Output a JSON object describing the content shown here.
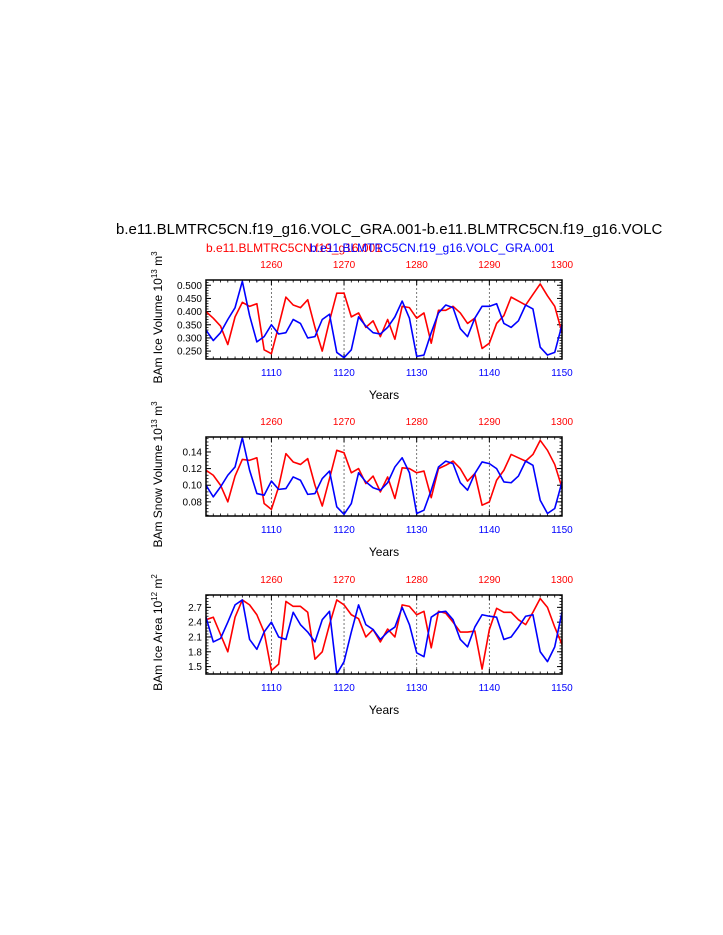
{
  "figure": {
    "title": "b.e11.BLMTRC5CN.f19_g16.VOLC_GRA.001-b.e11.BLMTRC5CN.f19_g16.VOLC",
    "legend_red": "b.e11.BLMTRC5CN.f19_g16.001",
    "legend_blue": "b.e11.BLMTRC5CN.f19_g16.VOLC_GRA.001",
    "colors": {
      "red": "#ff0000",
      "blue": "#0000ff",
      "axis": "#000000"
    }
  },
  "chart_data": [
    {
      "type": "line",
      "ylabel": "BAm Ice Volume 10",
      "ylabel_sup1": "13",
      "ylabel_mid": " m",
      "ylabel_sup2": "3",
      "xlabel": "Years",
      "ylim": [
        0.22,
        0.52
      ],
      "yticks": [
        "0.250",
        "0.300",
        "0.350",
        "0.400",
        "0.450",
        "0.500"
      ],
      "top_x": {
        "range": [
          1251,
          1300
        ],
        "ticks": [
          "1260",
          "1270",
          "1280",
          "1290",
          "1300"
        ]
      },
      "bottom_x": {
        "range": [
          1101,
          1150
        ],
        "ticks": [
          "1110",
          "1120",
          "1130",
          "1140",
          "1150"
        ]
      },
      "series": [
        {
          "color": "red",
          "axis": "top",
          "values": [
            0.4,
            0.375,
            0.345,
            0.275,
            0.38,
            0.435,
            0.42,
            0.43,
            0.255,
            0.24,
            0.345,
            0.455,
            0.425,
            0.415,
            0.445,
            0.34,
            0.25,
            0.365,
            0.47,
            0.47,
            0.38,
            0.395,
            0.34,
            0.365,
            0.305,
            0.37,
            0.295,
            0.42,
            0.415,
            0.375,
            0.395,
            0.28,
            0.405,
            0.405,
            0.42,
            0.395,
            0.355,
            0.375,
            0.26,
            0.28,
            0.355,
            0.385,
            0.455,
            0.44,
            0.425,
            0.465,
            0.505,
            0.46,
            0.42,
            0.32
          ]
        },
        {
          "color": "blue",
          "axis": "bottom",
          "values": [
            0.33,
            0.29,
            0.32,
            0.37,
            0.415,
            0.515,
            0.385,
            0.285,
            0.305,
            0.35,
            0.315,
            0.32,
            0.37,
            0.355,
            0.3,
            0.305,
            0.37,
            0.39,
            0.245,
            0.225,
            0.255,
            0.38,
            0.345,
            0.32,
            0.315,
            0.34,
            0.38,
            0.44,
            0.375,
            0.23,
            0.235,
            0.32,
            0.395,
            0.425,
            0.415,
            0.335,
            0.305,
            0.375,
            0.42,
            0.42,
            0.43,
            0.355,
            0.34,
            0.365,
            0.425,
            0.41,
            0.265,
            0.235,
            0.245,
            0.35
          ]
        }
      ]
    },
    {
      "type": "line",
      "ylabel": "BAm Snow Volume 10",
      "ylabel_sup1": "13",
      "ylabel_mid": " m",
      "ylabel_sup2": "3",
      "xlabel": "Years",
      "ylim": [
        0.063,
        0.158
      ],
      "yticks": [
        "0.08",
        "0.10",
        "0.12",
        "0.14"
      ],
      "top_x": {
        "range": [
          1251,
          1300
        ],
        "ticks": [
          "1260",
          "1270",
          "1280",
          "1290",
          "1300"
        ]
      },
      "bottom_x": {
        "range": [
          1101,
          1150
        ],
        "ticks": [
          "1110",
          "1120",
          "1130",
          "1140",
          "1150"
        ]
      },
      "series": [
        {
          "color": "red",
          "axis": "top",
          "values": [
            0.118,
            0.112,
            0.1,
            0.08,
            0.111,
            0.131,
            0.13,
            0.133,
            0.078,
            0.071,
            0.098,
            0.138,
            0.128,
            0.125,
            0.132,
            0.1,
            0.075,
            0.108,
            0.142,
            0.139,
            0.115,
            0.12,
            0.102,
            0.111,
            0.092,
            0.11,
            0.084,
            0.121,
            0.12,
            0.115,
            0.117,
            0.085,
            0.12,
            0.124,
            0.129,
            0.12,
            0.105,
            0.114,
            0.076,
            0.08,
            0.106,
            0.118,
            0.137,
            0.133,
            0.129,
            0.137,
            0.154,
            0.142,
            0.125,
            0.097
          ]
        },
        {
          "color": "blue",
          "axis": "bottom",
          "values": [
            0.1,
            0.086,
            0.098,
            0.112,
            0.122,
            0.157,
            0.118,
            0.09,
            0.088,
            0.105,
            0.095,
            0.096,
            0.11,
            0.106,
            0.089,
            0.09,
            0.108,
            0.117,
            0.074,
            0.065,
            0.078,
            0.115,
            0.104,
            0.097,
            0.094,
            0.103,
            0.122,
            0.133,
            0.115,
            0.066,
            0.07,
            0.094,
            0.122,
            0.129,
            0.126,
            0.103,
            0.094,
            0.114,
            0.128,
            0.126,
            0.12,
            0.104,
            0.103,
            0.111,
            0.129,
            0.124,
            0.082,
            0.066,
            0.072,
            0.104
          ]
        }
      ]
    },
    {
      "type": "line",
      "ylabel": "BAm Ice Area 10",
      "ylabel_sup1": "12",
      "ylabel_mid": " m",
      "ylabel_sup2": "2",
      "xlabel": "Years",
      "ylim": [
        1.35,
        2.95
      ],
      "yticks": [
        "1.5",
        "1.8",
        "2.1",
        "2.4",
        "2.7"
      ],
      "top_x": {
        "range": [
          1251,
          1300
        ],
        "ticks": [
          "1260",
          "1270",
          "1280",
          "1290",
          "1300"
        ]
      },
      "bottom_x": {
        "range": [
          1101,
          1150
        ],
        "ticks": [
          "1110",
          "1120",
          "1130",
          "1140",
          "1150"
        ]
      },
      "series": [
        {
          "color": "red",
          "axis": "top",
          "values": [
            2.45,
            2.5,
            2.15,
            1.8,
            2.5,
            2.85,
            2.75,
            2.55,
            2.2,
            1.42,
            1.55,
            2.82,
            2.72,
            2.72,
            2.6,
            1.65,
            1.8,
            2.35,
            2.85,
            2.75,
            2.55,
            2.47,
            2.1,
            2.25,
            2.0,
            2.26,
            2.1,
            2.75,
            2.72,
            2.55,
            2.62,
            1.88,
            2.62,
            2.58,
            2.4,
            2.2,
            2.2,
            2.22,
            1.45,
            2.25,
            2.68,
            2.6,
            2.6,
            2.45,
            2.35,
            2.6,
            2.88,
            2.7,
            2.3,
            1.95
          ]
        },
        {
          "color": "blue",
          "axis": "bottom",
          "values": [
            2.5,
            2.0,
            2.07,
            2.4,
            2.75,
            2.85,
            2.05,
            1.85,
            2.2,
            2.4,
            2.1,
            2.05,
            2.6,
            2.35,
            2.2,
            2.0,
            2.45,
            2.62,
            1.35,
            1.6,
            2.2,
            2.75,
            2.35,
            2.25,
            2.05,
            2.2,
            2.3,
            2.7,
            2.35,
            1.78,
            1.7,
            2.5,
            2.6,
            2.62,
            2.45,
            2.05,
            1.9,
            2.3,
            2.55,
            2.52,
            2.5,
            2.05,
            2.1,
            2.3,
            2.52,
            2.55,
            1.8,
            1.6,
            1.9,
            2.6
          ]
        }
      ]
    }
  ]
}
